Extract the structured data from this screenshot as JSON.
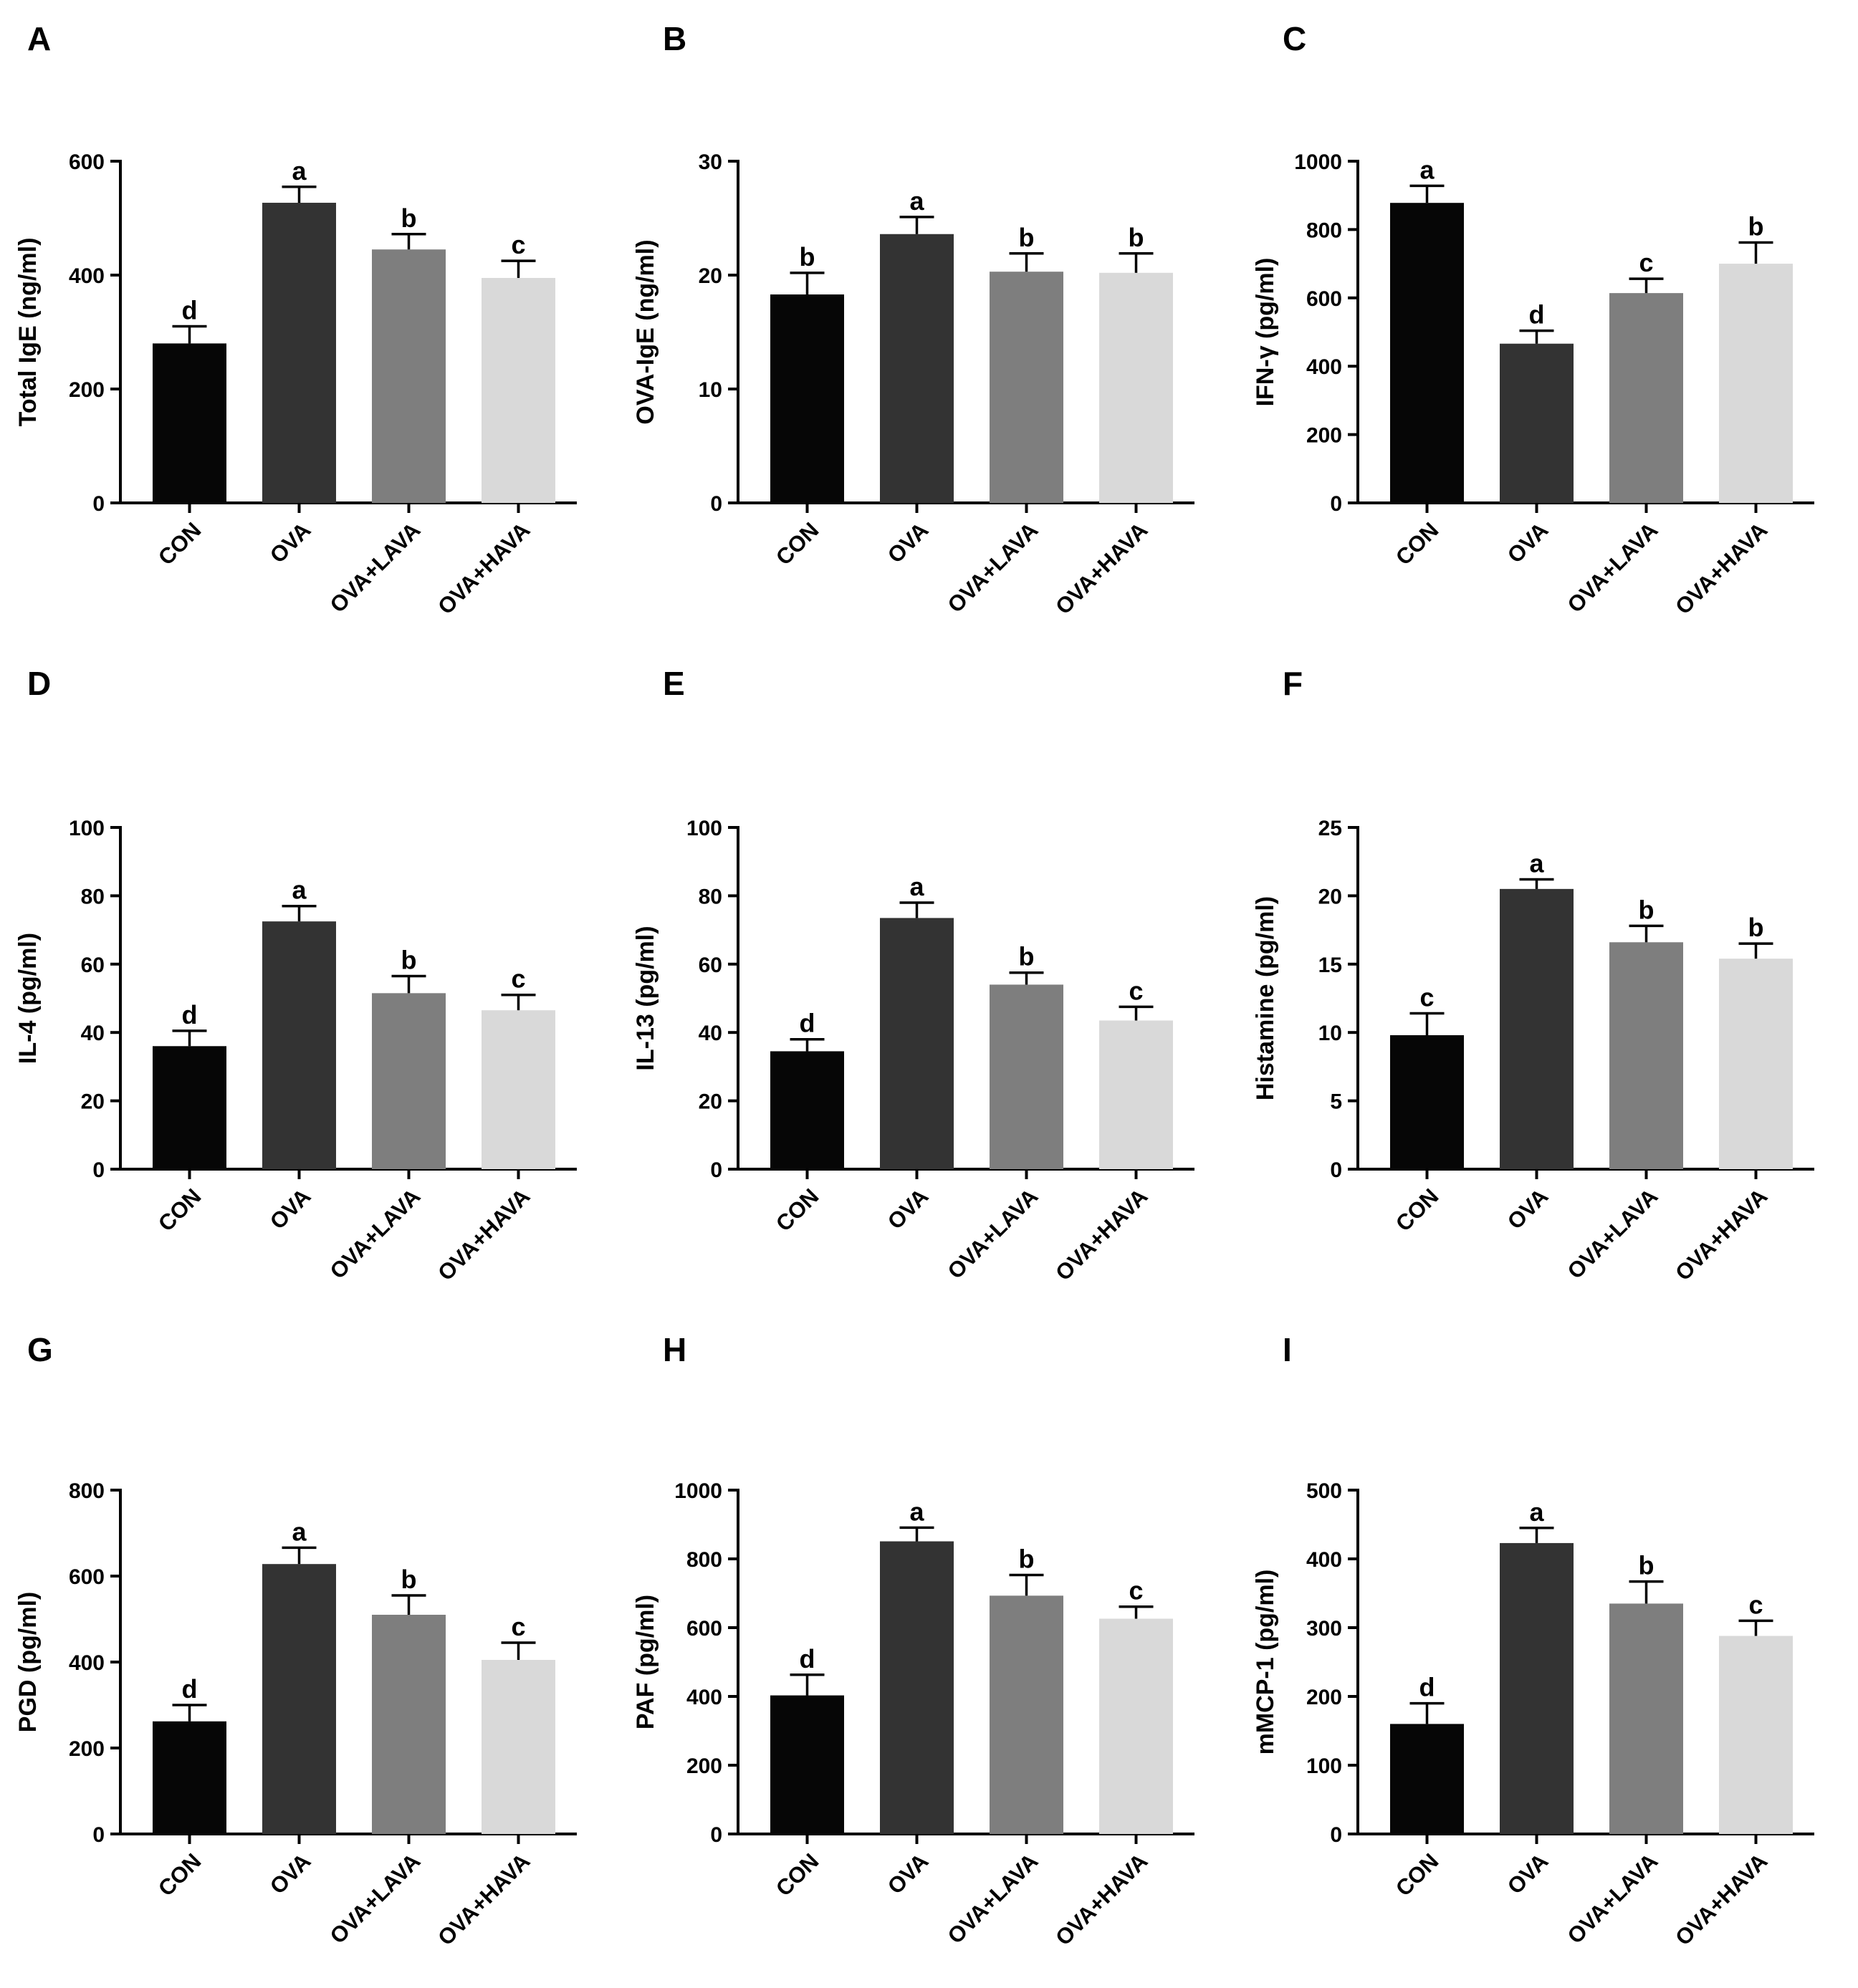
{
  "chart_data": [
    {
      "panel": "A",
      "type": "bar",
      "ylabel": "Total IgE (ng/ml)",
      "categories": [
        "CON",
        "OVA",
        "OVA+LAVA",
        "OVA+HAVA"
      ],
      "values": [
        280,
        527,
        445,
        395
      ],
      "errors": [
        30,
        28,
        27,
        30
      ],
      "significance": [
        "d",
        "a",
        "b",
        "c"
      ],
      "ylim": [
        0,
        600
      ],
      "yticks": [
        "0",
        "200",
        "400",
        "600"
      ],
      "colors": [
        "#060606",
        "#333333",
        "#7e7e7e",
        "#d9d9d9"
      ]
    },
    {
      "panel": "B",
      "type": "bar",
      "ylabel": "OVA-IgE (ng/ml)",
      "categories": [
        "CON",
        "OVA",
        "OVA+LAVA",
        "OVA+HAVA"
      ],
      "values": [
        18.3,
        23.6,
        20.3,
        20.2
      ],
      "errors": [
        1.9,
        1.5,
        1.6,
        1.7
      ],
      "significance": [
        "b",
        "a",
        "b",
        "b"
      ],
      "ylim": [
        0,
        30
      ],
      "yticks": [
        "0",
        "10",
        "20",
        "30"
      ],
      "colors": [
        "#060606",
        "#333333",
        "#7e7e7e",
        "#d9d9d9"
      ]
    },
    {
      "panel": "C",
      "type": "bar",
      "ylabel": "IFN-γ (pg/ml)",
      "categories": [
        "CON",
        "OVA",
        "OVA+LAVA",
        "OVA+HAVA"
      ],
      "values": [
        878,
        466,
        614,
        700
      ],
      "errors": [
        50,
        38,
        42,
        62
      ],
      "significance": [
        "a",
        "d",
        "c",
        "b"
      ],
      "ylim": [
        0,
        1000
      ],
      "yticks": [
        "0",
        "200",
        "400",
        "600",
        "800",
        "1000"
      ],
      "colors": [
        "#060606",
        "#333333",
        "#7e7e7e",
        "#d9d9d9"
      ]
    },
    {
      "panel": "D",
      "type": "bar",
      "ylabel": "IL-4 (pg/ml)",
      "categories": [
        "CON",
        "OVA",
        "OVA+LAVA",
        "OVA+HAVA"
      ],
      "values": [
        36,
        72.5,
        51.5,
        46.5
      ],
      "errors": [
        4.5,
        4.5,
        5,
        4.5
      ],
      "significance": [
        "d",
        "a",
        "b",
        "c"
      ],
      "ylim": [
        0,
        100
      ],
      "yticks": [
        "0",
        "20",
        "40",
        "60",
        "80",
        "100"
      ],
      "colors": [
        "#060606",
        "#333333",
        "#7e7e7e",
        "#d9d9d9"
      ]
    },
    {
      "panel": "E",
      "type": "bar",
      "ylabel": "IL-13 (pg/ml)",
      "categories": [
        "CON",
        "OVA",
        "OVA+LAVA",
        "OVA+HAVA"
      ],
      "values": [
        34.5,
        73.5,
        54,
        43.5
      ],
      "errors": [
        3.5,
        4.5,
        3.5,
        4
      ],
      "significance": [
        "d",
        "a",
        "b",
        "c"
      ],
      "ylim": [
        0,
        100
      ],
      "yticks": [
        "0",
        "20",
        "40",
        "60",
        "80",
        "100"
      ],
      "colors": [
        "#060606",
        "#333333",
        "#7e7e7e",
        "#d9d9d9"
      ]
    },
    {
      "panel": "F",
      "type": "bar",
      "ylabel": "Histamine (pg/ml)",
      "categories": [
        "CON",
        "OVA",
        "OVA+LAVA",
        "OVA+HAVA"
      ],
      "values": [
        9.8,
        20.5,
        16.6,
        15.4
      ],
      "errors": [
        1.6,
        0.7,
        1.2,
        1.1
      ],
      "significance": [
        "c",
        "a",
        "b",
        "b"
      ],
      "ylim": [
        0,
        25
      ],
      "yticks": [
        "0",
        "5",
        "10",
        "15",
        "20",
        "25"
      ],
      "colors": [
        "#060606",
        "#333333",
        "#7e7e7e",
        "#d9d9d9"
      ]
    },
    {
      "panel": "G",
      "type": "bar",
      "ylabel": "PGD (pg/ml)",
      "categories": [
        "CON",
        "OVA",
        "OVA+LAVA",
        "OVA+HAVA"
      ],
      "values": [
        262,
        628,
        510,
        405
      ],
      "errors": [
        38,
        38,
        45,
        40
      ],
      "significance": [
        "d",
        "a",
        "b",
        "c"
      ],
      "ylim": [
        0,
        800
      ],
      "yticks": [
        "0",
        "200",
        "400",
        "600",
        "800"
      ],
      "colors": [
        "#060606",
        "#333333",
        "#7e7e7e",
        "#d9d9d9"
      ]
    },
    {
      "panel": "H",
      "type": "bar",
      "ylabel": "PAF (pg/ml)",
      "categories": [
        "CON",
        "OVA",
        "OVA+LAVA",
        "OVA+HAVA"
      ],
      "values": [
        403,
        851,
        693,
        626
      ],
      "errors": [
        60,
        40,
        60,
        35
      ],
      "significance": [
        "d",
        "a",
        "b",
        "c"
      ],
      "ylim": [
        0,
        1000
      ],
      "yticks": [
        "0",
        "200",
        "400",
        "600",
        "800",
        "1000"
      ],
      "colors": [
        "#060606",
        "#333333",
        "#7e7e7e",
        "#d9d9d9"
      ]
    },
    {
      "panel": "I",
      "type": "bar",
      "ylabel": "mMCP-1 (pg/ml)",
      "categories": [
        "CON",
        "OVA",
        "OVA+LAVA",
        "OVA+HAVA"
      ],
      "values": [
        160,
        423,
        335,
        288
      ],
      "errors": [
        30,
        22,
        32,
        22
      ],
      "significance": [
        "d",
        "a",
        "b",
        "c"
      ],
      "ylim": [
        0,
        500
      ],
      "yticks": [
        "0",
        "100",
        "200",
        "300",
        "400",
        "500"
      ],
      "colors": [
        "#060606",
        "#333333",
        "#7e7e7e",
        "#d9d9d9"
      ]
    }
  ]
}
